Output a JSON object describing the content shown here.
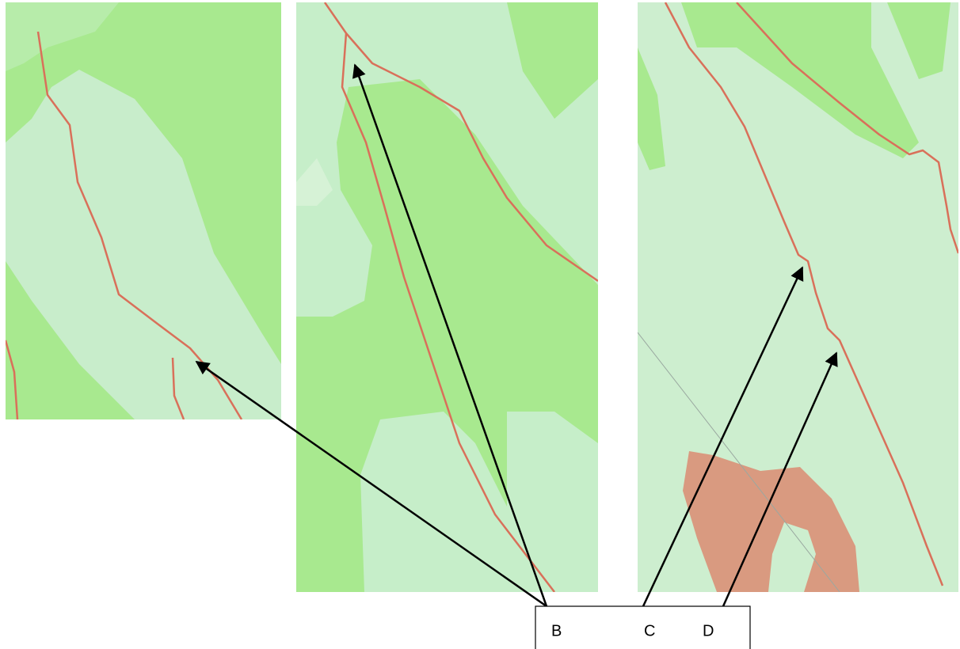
{
  "labels": {
    "items": [
      "B",
      "C",
      "D"
    ]
  }
}
